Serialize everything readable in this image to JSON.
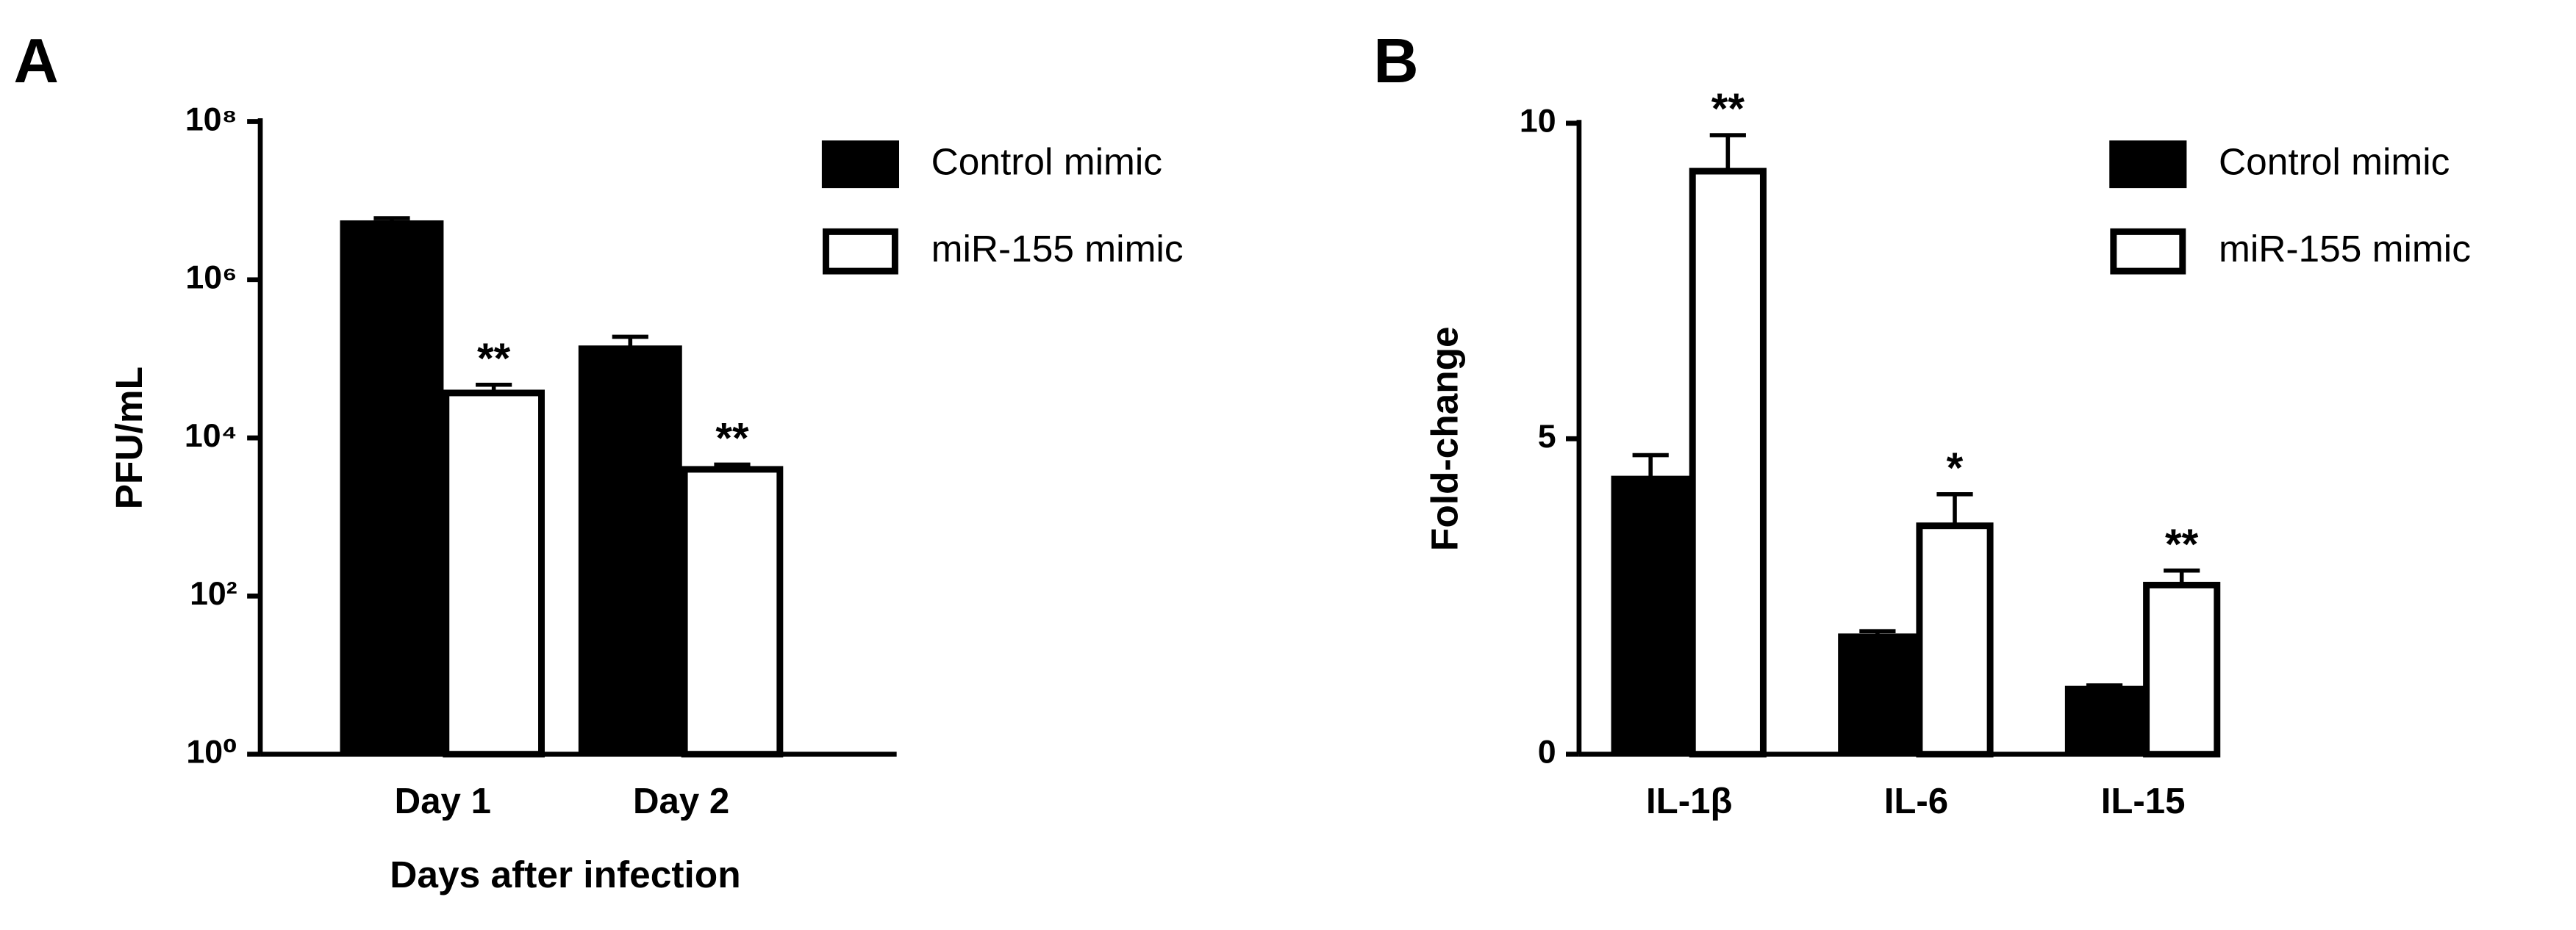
{
  "chart_data": [
    {
      "type": "bar",
      "panel": "A",
      "log_scale": true,
      "x_label": "Days after infection",
      "y_label": "PFU/mL",
      "categories": [
        "Day 1",
        "Day 2"
      ],
      "series": [
        {
          "name": "Control mimic",
          "color": "#000000",
          "values": [
            5500000,
            144000
          ],
          "errors": [
            500000,
            46000
          ]
        },
        {
          "name": "miR-155 mimic",
          "color": "#ffffff",
          "values": [
            37000,
            4000
          ],
          "errors": [
            10000,
            600
          ],
          "annotations": [
            "**",
            "**"
          ]
        }
      ],
      "ylim": [
        1,
        100000000
      ],
      "yticks": [
        {
          "value": 1,
          "label": "10⁰"
        },
        {
          "value": 100,
          "label": "10²"
        },
        {
          "value": 10000,
          "label": "10⁴"
        },
        {
          "value": 1000000,
          "label": "10⁶"
        },
        {
          "value": 100000000,
          "label": "10⁸"
        }
      ],
      "legend": "top-right"
    },
    {
      "type": "bar",
      "panel": "B",
      "log_scale": false,
      "y_label": "Fold-change",
      "categories": [
        "IL-1β",
        "IL-6",
        "IL-15"
      ],
      "series": [
        {
          "name": "Control mimic",
          "color": "#000000",
          "values": [
            4.4,
            1.9,
            1.07
          ],
          "errors": [
            0.34,
            0.05,
            0.02
          ]
        },
        {
          "name": "miR-155 mimic",
          "color": "#ffffff",
          "values": [
            9.24,
            3.62,
            2.68
          ],
          "errors": [
            0.57,
            0.5,
            0.23
          ],
          "annotations": [
            "**",
            "*",
            "**"
          ]
        }
      ],
      "ylim": [
        0,
        10
      ],
      "yticks": [
        0,
        5,
        10
      ],
      "legend": "top-right"
    }
  ]
}
